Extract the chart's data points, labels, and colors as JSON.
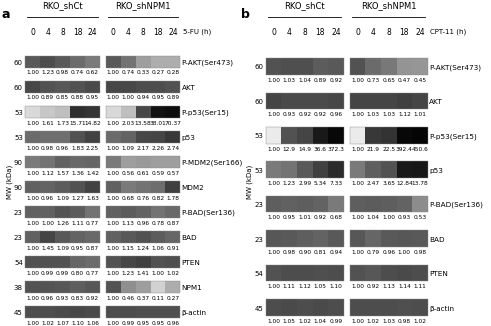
{
  "panel_a": {
    "title_group1": "RKO_shCt",
    "title_group2": "RKO_shNPM1",
    "treatment_label": "5-FU (h)",
    "timepoints": [
      "0",
      "4",
      "8",
      "18",
      "24"
    ],
    "panel_label": "a",
    "rows": [
      {
        "mw": "60",
        "protein": "P-AKT(Ser473)",
        "values_ct": [
          "1.00",
          "1.23",
          "0.98",
          "0.74",
          "0.62"
        ],
        "values_npm1": [
          "1.00",
          "0.74",
          "0.33",
          "0.27",
          "0.28"
        ],
        "band_ct": [
          0.65,
          0.7,
          0.65,
          0.58,
          0.52
        ],
        "band_npm1": [
          0.65,
          0.55,
          0.38,
          0.32,
          0.32
        ]
      },
      {
        "mw": "60",
        "protein": "AKT",
        "values_ct": [
          "1.00",
          "0.89",
          "0.85",
          "0.88",
          "0.95"
        ],
        "values_npm1": [
          "1.00",
          "1.00",
          "0.94",
          "0.95",
          "0.89"
        ],
        "band_ct": [
          0.72,
          0.68,
          0.66,
          0.68,
          0.71
        ],
        "band_npm1": [
          0.72,
          0.72,
          0.7,
          0.7,
          0.68
        ]
      },
      {
        "mw": "53",
        "protein": "P-p53(Ser15)",
        "values_ct": [
          "1.00",
          "1.61",
          "1.73",
          "15.71",
          "14.82"
        ],
        "values_npm1": [
          "1.00",
          "2.03",
          "13.58",
          "38.01",
          "70.37"
        ],
        "band_ct": [
          0.15,
          0.22,
          0.25,
          0.82,
          0.8
        ],
        "band_npm1": [
          0.15,
          0.25,
          0.72,
          0.93,
          0.95
        ]
      },
      {
        "mw": "53",
        "protein": "p53",
        "values_ct": [
          "1.00",
          "0.98",
          "0.96",
          "1.83",
          "2.25"
        ],
        "values_npm1": [
          "1.00",
          "1.09",
          "2.17",
          "2.26",
          "2.74"
        ],
        "band_ct": [
          0.58,
          0.57,
          0.57,
          0.68,
          0.74
        ],
        "band_npm1": [
          0.58,
          0.61,
          0.72,
          0.73,
          0.78
        ]
      },
      {
        "mw": "90",
        "protein": "P-MDM2(Ser166)",
        "values_ct": [
          "1.00",
          "1.12",
          "1.57",
          "1.36",
          "1.42"
        ],
        "values_npm1": [
          "1.00",
          "0.56",
          "0.61",
          "0.59",
          "0.57"
        ],
        "band_ct": [
          0.52,
          0.55,
          0.62,
          0.59,
          0.6
        ],
        "band_npm1": [
          0.52,
          0.38,
          0.4,
          0.38,
          0.38
        ]
      },
      {
        "mw": "90",
        "protein": "MDM2",
        "values_ct": [
          "1.00",
          "0.96",
          "1.09",
          "1.27",
          "1.63"
        ],
        "values_npm1": [
          "1.00",
          "0.68",
          "0.76",
          "0.82",
          "1.78"
        ],
        "band_ct": [
          0.62,
          0.61,
          0.64,
          0.68,
          0.74
        ],
        "band_npm1": [
          0.62,
          0.52,
          0.55,
          0.57,
          0.75
        ]
      },
      {
        "mw": "23",
        "protein": "P-BAD(Ser136)",
        "values_ct": [
          "1.00",
          "1.00",
          "1.26",
          "1.11",
          "0.77"
        ],
        "values_npm1": [
          "1.00",
          "1.13",
          "0.96",
          "0.78",
          "0.87"
        ],
        "band_ct": [
          0.62,
          0.62,
          0.67,
          0.64,
          0.55
        ],
        "band_npm1": [
          0.62,
          0.64,
          0.61,
          0.55,
          0.59
        ]
      },
      {
        "mw": "23",
        "protein": "BAD",
        "values_ct": [
          "1.00",
          "1.45",
          "1.09",
          "0.95",
          "0.87"
        ],
        "values_npm1": [
          "1.00",
          "1.15",
          "1.24",
          "1.06",
          "0.91"
        ],
        "band_ct": [
          0.62,
          0.73,
          0.65,
          0.61,
          0.59
        ],
        "band_npm1": [
          0.62,
          0.65,
          0.68,
          0.64,
          0.6
        ]
      },
      {
        "mw": "54",
        "protein": "PTEN",
        "values_ct": [
          "1.00",
          "0.99",
          "0.99",
          "0.80",
          "0.77"
        ],
        "values_npm1": [
          "1.00",
          "1.23",
          "1.41",
          "1.00",
          "1.02"
        ],
        "band_ct": [
          0.68,
          0.68,
          0.68,
          0.6,
          0.58
        ],
        "band_npm1": [
          0.68,
          0.72,
          0.75,
          0.68,
          0.69
        ]
      },
      {
        "mw": "38",
        "protein": "NPM1",
        "values_ct": [
          "1.00",
          "0.96",
          "0.93",
          "0.83",
          "0.92"
        ],
        "values_npm1": [
          "1.00",
          "0.46",
          "0.37",
          "0.11",
          "0.27"
        ],
        "band_ct": [
          0.68,
          0.67,
          0.66,
          0.63,
          0.66
        ],
        "band_npm1": [
          0.68,
          0.44,
          0.38,
          0.18,
          0.32
        ]
      },
      {
        "mw": "45",
        "protein": "β-actin",
        "values_ct": [
          "1.00",
          "1.02",
          "1.07",
          "1.10",
          "1.06"
        ],
        "values_npm1": [
          "1.00",
          "0.99",
          "0.95",
          "0.95",
          "0.96"
        ],
        "band_ct": [
          0.7,
          0.7,
          0.71,
          0.72,
          0.71
        ],
        "band_npm1": [
          0.7,
          0.7,
          0.69,
          0.69,
          0.69
        ]
      }
    ]
  },
  "panel_b": {
    "title_group1": "RKO_shCt",
    "title_group2": "RKO_shNPM1",
    "treatment_label": "CPT-11 (h)",
    "timepoints": [
      "0",
      "4",
      "8",
      "18",
      "24"
    ],
    "panel_label": "b",
    "rows": [
      {
        "mw": "60",
        "protein": "P-AKT(Ser473)",
        "values_ct": [
          "1.00",
          "1.03",
          "1.04",
          "0.89",
          "0.92"
        ],
        "values_npm1": [
          "1.00",
          "0.73",
          "0.65",
          "0.47",
          "0.45"
        ],
        "band_ct": [
          0.68,
          0.69,
          0.69,
          0.64,
          0.65
        ],
        "band_npm1": [
          0.68,
          0.58,
          0.53,
          0.42,
          0.41
        ]
      },
      {
        "mw": "60",
        "protein": "AKT",
        "values_ct": [
          "1.00",
          "0.93",
          "0.92",
          "0.92",
          "0.96"
        ],
        "values_npm1": [
          "1.00",
          "1.03",
          "1.03",
          "1.12",
          "1.01"
        ],
        "band_ct": [
          0.73,
          0.71,
          0.71,
          0.71,
          0.72
        ],
        "band_npm1": [
          0.73,
          0.73,
          0.73,
          0.75,
          0.73
        ]
      },
      {
        "mw": "53",
        "protein": "P-p53(Ser15)",
        "values_ct": [
          "1.00",
          "12.9",
          "14.9",
          "36.6",
          "372.3"
        ],
        "values_npm1": [
          "1.00",
          "21.9",
          "22.5",
          "392.4",
          "450.6"
        ],
        "band_ct": [
          0.08,
          0.68,
          0.73,
          0.9,
          0.97
        ],
        "band_npm1": [
          0.08,
          0.78,
          0.8,
          0.97,
          0.98
        ]
      },
      {
        "mw": "53",
        "protein": "p53",
        "values_ct": [
          "1.00",
          "1.23",
          "2.99",
          "5.34",
          "7.33"
        ],
        "values_npm1": [
          "1.00",
          "2.47",
          "3.65",
          "12.84",
          "13.78"
        ],
        "band_ct": [
          0.52,
          0.55,
          0.65,
          0.75,
          0.83
        ],
        "band_npm1": [
          0.52,
          0.63,
          0.68,
          0.9,
          0.91
        ]
      },
      {
        "mw": "23",
        "protein": "P-BAD(Ser136)",
        "values_ct": [
          "1.00",
          "0.95",
          "1.01",
          "0.92",
          "0.68"
        ],
        "values_npm1": [
          "1.00",
          "1.04",
          "1.00",
          "0.93",
          "0.53"
        ],
        "band_ct": [
          0.63,
          0.62,
          0.63,
          0.61,
          0.52
        ],
        "band_npm1": [
          0.63,
          0.64,
          0.63,
          0.61,
          0.45
        ]
      },
      {
        "mw": "23",
        "protein": "BAD",
        "values_ct": [
          "1.00",
          "0.98",
          "0.90",
          "0.81",
          "0.94"
        ],
        "values_npm1": [
          "1.00",
          "0.79",
          "0.96",
          "1.00",
          "0.98"
        ],
        "band_ct": [
          0.66,
          0.65,
          0.63,
          0.61,
          0.65
        ],
        "band_npm1": [
          0.66,
          0.6,
          0.65,
          0.66,
          0.65
        ]
      },
      {
        "mw": "54",
        "protein": "PTEN",
        "values_ct": [
          "1.00",
          "1.11",
          "1.12",
          "1.05",
          "1.10"
        ],
        "values_npm1": [
          "1.00",
          "0.92",
          "1.13",
          "1.14",
          "1.11"
        ],
        "band_ct": [
          0.68,
          0.7,
          0.7,
          0.69,
          0.7
        ],
        "band_npm1": [
          0.68,
          0.66,
          0.7,
          0.71,
          0.7
        ]
      },
      {
        "mw": "45",
        "protein": "β-actin",
        "values_ct": [
          "1.00",
          "1.05",
          "1.02",
          "1.04",
          "0.99"
        ],
        "values_npm1": [
          "1.00",
          "1.02",
          "1.03",
          "0.98",
          "1.02"
        ],
        "band_ct": [
          0.7,
          0.71,
          0.7,
          0.71,
          0.7
        ],
        "band_npm1": [
          0.7,
          0.7,
          0.7,
          0.69,
          0.7
        ]
      }
    ]
  },
  "figure_bg": "#ffffff",
  "text_color": "#000000",
  "val_fs": 4.2,
  "tp_fs": 5.5,
  "mw_fs": 5.0,
  "protein_fs": 5.2,
  "header_fs": 6.0,
  "panel_label_fs": 9,
  "mwaxis_fs": 5.0
}
